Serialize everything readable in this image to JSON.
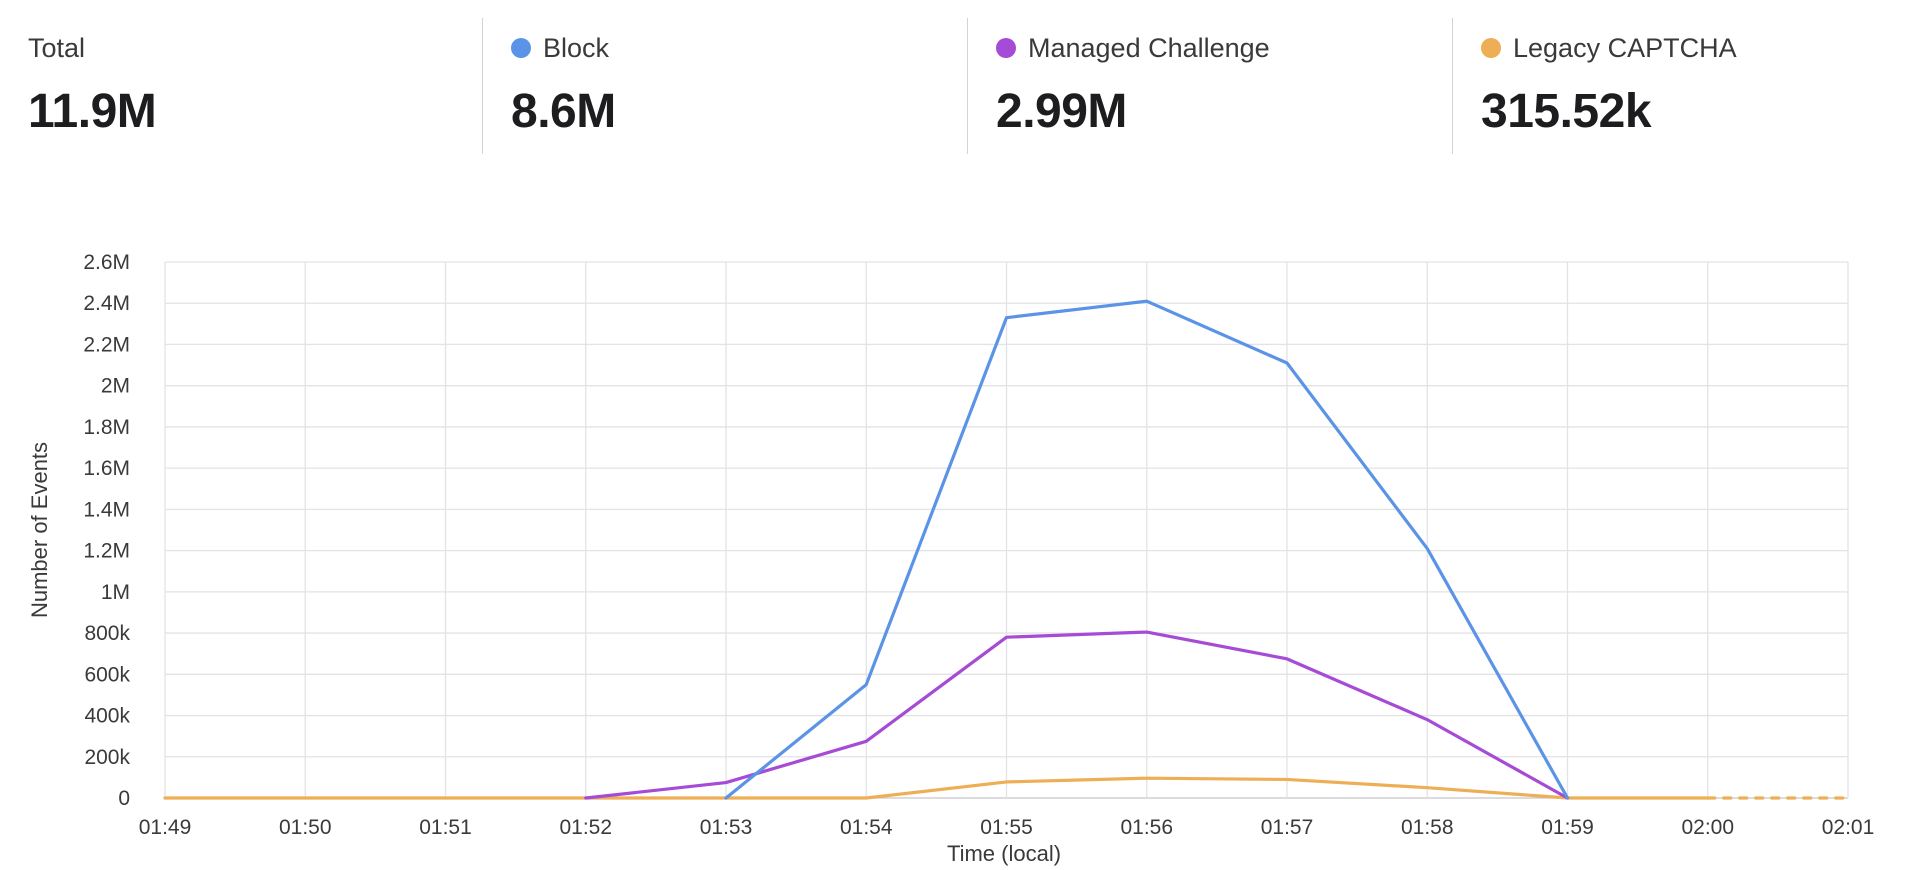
{
  "stats": [
    {
      "label": "Total",
      "value": "11.9M",
      "color": null
    },
    {
      "label": "Block",
      "value": "8.6M",
      "color": "#5b93e6"
    },
    {
      "label": "Managed Challenge",
      "value": "2.99M",
      "color": "#a64bd6"
    },
    {
      "label": "Legacy CAPTCHA",
      "value": "315.52k",
      "color": "#eeae55"
    }
  ],
  "chart_data": {
    "type": "line",
    "xlabel": "Time (local)",
    "ylabel": "Number of Events",
    "x": [
      "01:49",
      "01:50",
      "01:51",
      "01:52",
      "01:53",
      "01:54",
      "01:55",
      "01:56",
      "01:57",
      "01:58",
      "01:59",
      "02:00",
      "02:01"
    ],
    "y_ticks": [
      "0",
      "200k",
      "400k",
      "600k",
      "800k",
      "1M",
      "1.2M",
      "1.4M",
      "1.6M",
      "1.8M",
      "2M",
      "2.2M",
      "2.4M",
      "2.6M"
    ],
    "ylim": [
      0,
      2600000
    ],
    "grid": true,
    "series": [
      {
        "name": "Block",
        "color": "#5b93e6",
        "points": [
          [
            "01:53",
            0
          ],
          [
            "01:54",
            550000
          ],
          [
            "01:55",
            2330000
          ],
          [
            "01:56",
            2410000
          ],
          [
            "01:57",
            2110000
          ],
          [
            "01:58",
            1210000
          ],
          [
            "01:59",
            0
          ]
        ]
      },
      {
        "name": "Managed Challenge",
        "color": "#a64bd6",
        "points": [
          [
            "01:52",
            0
          ],
          [
            "01:53",
            75000
          ],
          [
            "01:54",
            275000
          ],
          [
            "01:55",
            780000
          ],
          [
            "01:56",
            805000
          ],
          [
            "01:57",
            675000
          ],
          [
            "01:58",
            380000
          ],
          [
            "01:59",
            0
          ]
        ]
      },
      {
        "name": "Legacy CAPTCHA",
        "color": "#eeae55",
        "points": [
          [
            "01:49",
            0
          ],
          [
            "01:50",
            0
          ],
          [
            "01:51",
            0
          ],
          [
            "01:52",
            0
          ],
          [
            "01:53",
            0
          ],
          [
            "01:54",
            0
          ],
          [
            "01:55",
            78000
          ],
          [
            "01:56",
            96000
          ],
          [
            "01:57",
            90000
          ],
          [
            "01:58",
            50000
          ],
          [
            "01:59",
            0
          ],
          [
            "02:00",
            0
          ]
        ],
        "dashed_tail_to": "02:01"
      }
    ]
  }
}
